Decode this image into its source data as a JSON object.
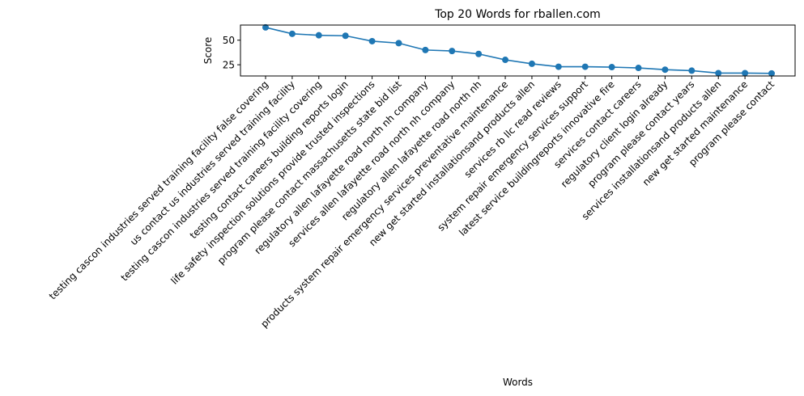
{
  "chart_data": {
    "type": "line",
    "title": "Top 20 Words for rballen.com",
    "xlabel": "Words",
    "ylabel": "Score",
    "ylim": [
      13.6,
      65.4
    ],
    "yticks": [
      25,
      50
    ],
    "grid": false,
    "marker": "circle",
    "color": "#1f77b4",
    "categories": [
      "testing cascon industries served training facility false covering",
      "us contact us industries served training facility",
      "testing cascon industries served training facility covering",
      "testing contact careers building reports login",
      "life safety inspection solutions provide trusted inspections",
      "program please contact massachusetts state bid list",
      "regulatory allen lafayette road north nh company",
      "services allen lafayette road north nh company",
      "regulatory allen lafayette road north nh",
      "products system repair emergency services preventative maintenance",
      "new get started installationsand products allen",
      "services rb llc read reviews",
      "system repair emergency services support",
      "latest service buildingreports innovative fire",
      "services contact careers",
      "regulatory client login already",
      "program please contact years",
      "services installationsand products allen",
      "new get started maintenance",
      "program please contact"
    ],
    "values": [
      63,
      56.5,
      55,
      54.5,
      49,
      47,
      40,
      39,
      36,
      30,
      26,
      23,
      23,
      22.6,
      21.8,
      20,
      19,
      16.5,
      16.5,
      16.2
    ]
  }
}
